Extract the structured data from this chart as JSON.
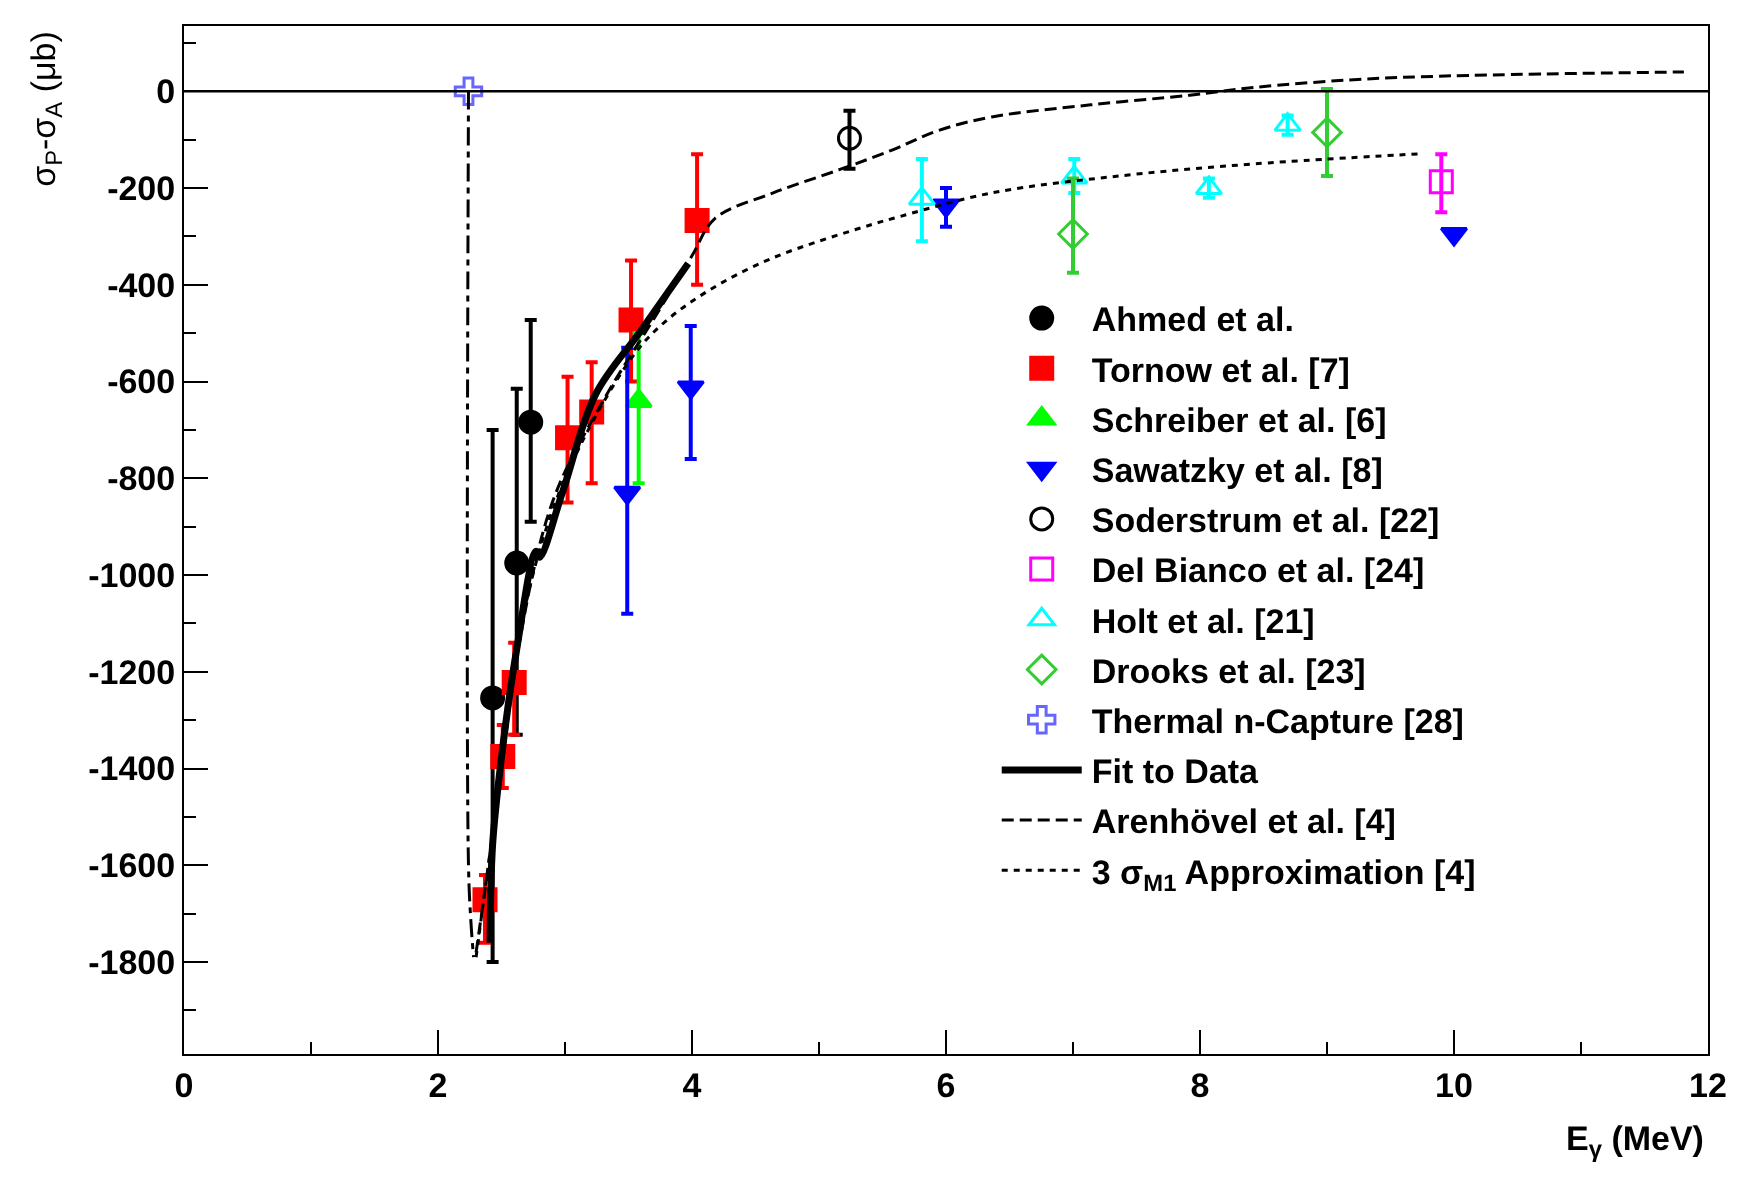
{
  "chart_data": {
    "type": "scatter",
    "xlabel": "E$_{γ}$ (MeV)",
    "ylabel": "σ$_{P}$-σ$_{A}$ (μb)",
    "xlim": [
      0,
      12
    ],
    "xticks": [
      0,
      2,
      4,
      6,
      8,
      10,
      12
    ],
    "ylim": [
      -1990,
      135
    ],
    "yticks": [
      -1800,
      -1600,
      -1400,
      -1200,
      -1000,
      -800,
      -600,
      -400,
      -200,
      0
    ],
    "legend": "right",
    "ref_lines": [
      {
        "axis": "y",
        "value": 0,
        "label": null,
        "color": "#000000",
        "line_style": "solid"
      }
    ],
    "series": [
      {
        "name": "Ahmed et al.",
        "color": "#000000",
        "marker": "circle",
        "x": [
          2.43,
          2.62,
          2.73
        ],
        "values": [
          -1254,
          -975,
          -684
        ],
        "errors": [
          [
            -1800,
            -700
          ],
          [
            -1330,
            -615
          ],
          [
            -890,
            -473
          ]
        ]
      },
      {
        "name": "Tornow et al. [7]",
        "color": "#ff0000",
        "marker": "square",
        "x": [
          2.37,
          2.51,
          2.6,
          3.02,
          3.21,
          3.52,
          4.04
        ],
        "values": [
          -1671,
          -1375,
          -1222,
          -716,
          -663,
          -473,
          -267
        ],
        "errors": [
          [
            -1760,
            -1620
          ],
          [
            -1440,
            -1310
          ],
          [
            -1330,
            -1140
          ],
          [
            -850,
            -590
          ],
          [
            -810,
            -560
          ],
          [
            -600,
            -350
          ],
          [
            -400,
            -130
          ]
        ]
      },
      {
        "name": "Schreiber et al. [6]",
        "color": "#00ff00",
        "marker": "triangle",
        "x": [
          3.58
        ],
        "values": [
          -640
        ],
        "errors": [
          [
            -810,
            -500
          ]
        ]
      },
      {
        "name": "Sawatzky et al. [8]",
        "color": "#0000ff",
        "marker": "triangle-down",
        "x": [
          3.49,
          3.99,
          6.0,
          10.0
        ],
        "values": [
          -830,
          -612,
          -236,
          -295
        ],
        "errors": [
          [
            -1080,
            -530
          ],
          [
            -760,
            -485
          ],
          [
            -280,
            -200
          ],
          null
        ]
      },
      {
        "name": "Soderstrum et al. [22]",
        "color": "#000000",
        "marker": "circle-open",
        "x": [
          5.24
        ],
        "values": [
          -97
        ],
        "errors": [
          [
            -160,
            -40
          ]
        ]
      },
      {
        "name": "Del Bianco et al. [24]",
        "color": "#ff00ff",
        "marker": "square-open",
        "x": [
          9.9
        ],
        "values": [
          -187
        ],
        "errors": [
          [
            -250,
            -130
          ]
        ]
      },
      {
        "name": "Holt et al. [21]",
        "color": "#00ffff",
        "marker": "triangle-open",
        "x": [
          5.81,
          7.01,
          8.07,
          8.69
        ],
        "values": [
          -222,
          -178,
          -200,
          -69
        ],
        "errors": [
          [
            -310,
            -140
          ],
          [
            -210,
            -140
          ],
          [
            -220,
            -180
          ],
          [
            -90,
            -50
          ]
        ]
      },
      {
        "name": "Drooks et al. [23]",
        "color": "#33cc33",
        "marker": "diamond-open",
        "x": [
          7.0,
          9.0
        ],
        "values": [
          -295,
          -85
        ],
        "errors": [
          [
            -375,
            -180
          ],
          [
            -175,
            5
          ]
        ]
      },
      {
        "name": "Thermal n-Capture [28]",
        "color": "#6666ff",
        "marker": "cross-open",
        "x": [
          2.24
        ],
        "values": [
          0
        ]
      },
      {
        "type": "line",
        "color": "#000000",
        "line_style": "dashdot",
        "x": [
          2.24,
          2.24,
          2.26,
          2.28
        ],
        "values": [
          0,
          -1600,
          -1720,
          -1790
        ]
      },
      {
        "type": "line",
        "name": "Fit to Data",
        "color": "#000000",
        "line_style": "solid",
        "x": [
          2.41,
          2.43,
          2.51,
          2.62,
          2.77,
          2.8,
          2.98,
          3.24,
          3.6,
          3.97
        ],
        "values": [
          -1760,
          -1557,
          -1355,
          -1153,
          -951,
          -963,
          -829,
          -627,
          -494,
          -356
        ]
      },
      {
        "type": "line",
        "name": "Arenhövel et al. [4]",
        "color": "#000000",
        "line_style": "dashed",
        "x": [
          2.3,
          2.45,
          2.6,
          2.9,
          3.3,
          3.7,
          4.0,
          4.18,
          4.64,
          5.16,
          5.58,
          5.94,
          6.36,
          7.14,
          7.92,
          8.43,
          9.21,
          9.99,
          11.81
        ],
        "values": [
          -1780,
          -1500,
          -1200,
          -850,
          -640,
          -470,
          -340,
          -263,
          -210,
          -162,
          -121,
          -81,
          -53,
          -28,
          -8,
          8,
          24,
          32,
          40
        ]
      },
      {
        "type": "line",
        "name": "3 σ$_{M1}$ Approximation [4]",
        "color": "#000000",
        "line_style": "dotted",
        "x": [
          2.3,
          2.5,
          2.7,
          3.0,
          3.5,
          3.75,
          4.13,
          4.64,
          5.42,
          5.58,
          6.36,
          7.4,
          8.43,
          9.74
        ],
        "values": [
          -1790,
          -1400,
          -1050,
          -800,
          -560,
          -485,
          -412,
          -344,
          -275,
          -263,
          -210,
          -174,
          -150,
          -129
        ]
      }
    ]
  }
}
